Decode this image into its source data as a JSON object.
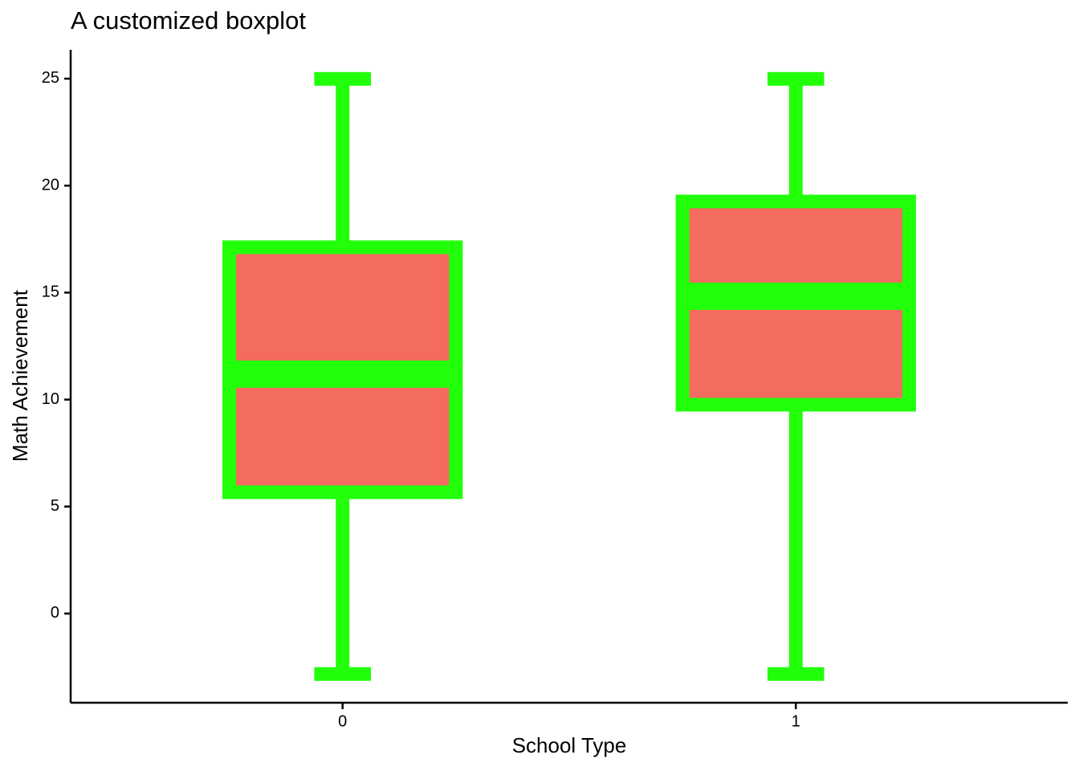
{
  "chart_data": {
    "type": "boxplot",
    "title": "A customized boxplot",
    "x_label": "School Type",
    "y_label": "Math Achievement",
    "categories": [
      "0",
      "1"
    ],
    "fill_color": "#f46b5f",
    "line_color": "#22ff0a",
    "whisker_low": [
      -2.83,
      -2.83
    ],
    "q1": [
      5.67,
      9.76
    ],
    "median": [
      11.19,
      14.83
    ],
    "q3": [
      17.12,
      19.26
    ],
    "whisker_high": [
      24.99,
      24.99
    ],
    "ylim": [
      -4.17,
      26.35
    ],
    "yticks": [
      0,
      5,
      10,
      15,
      20,
      25
    ]
  }
}
